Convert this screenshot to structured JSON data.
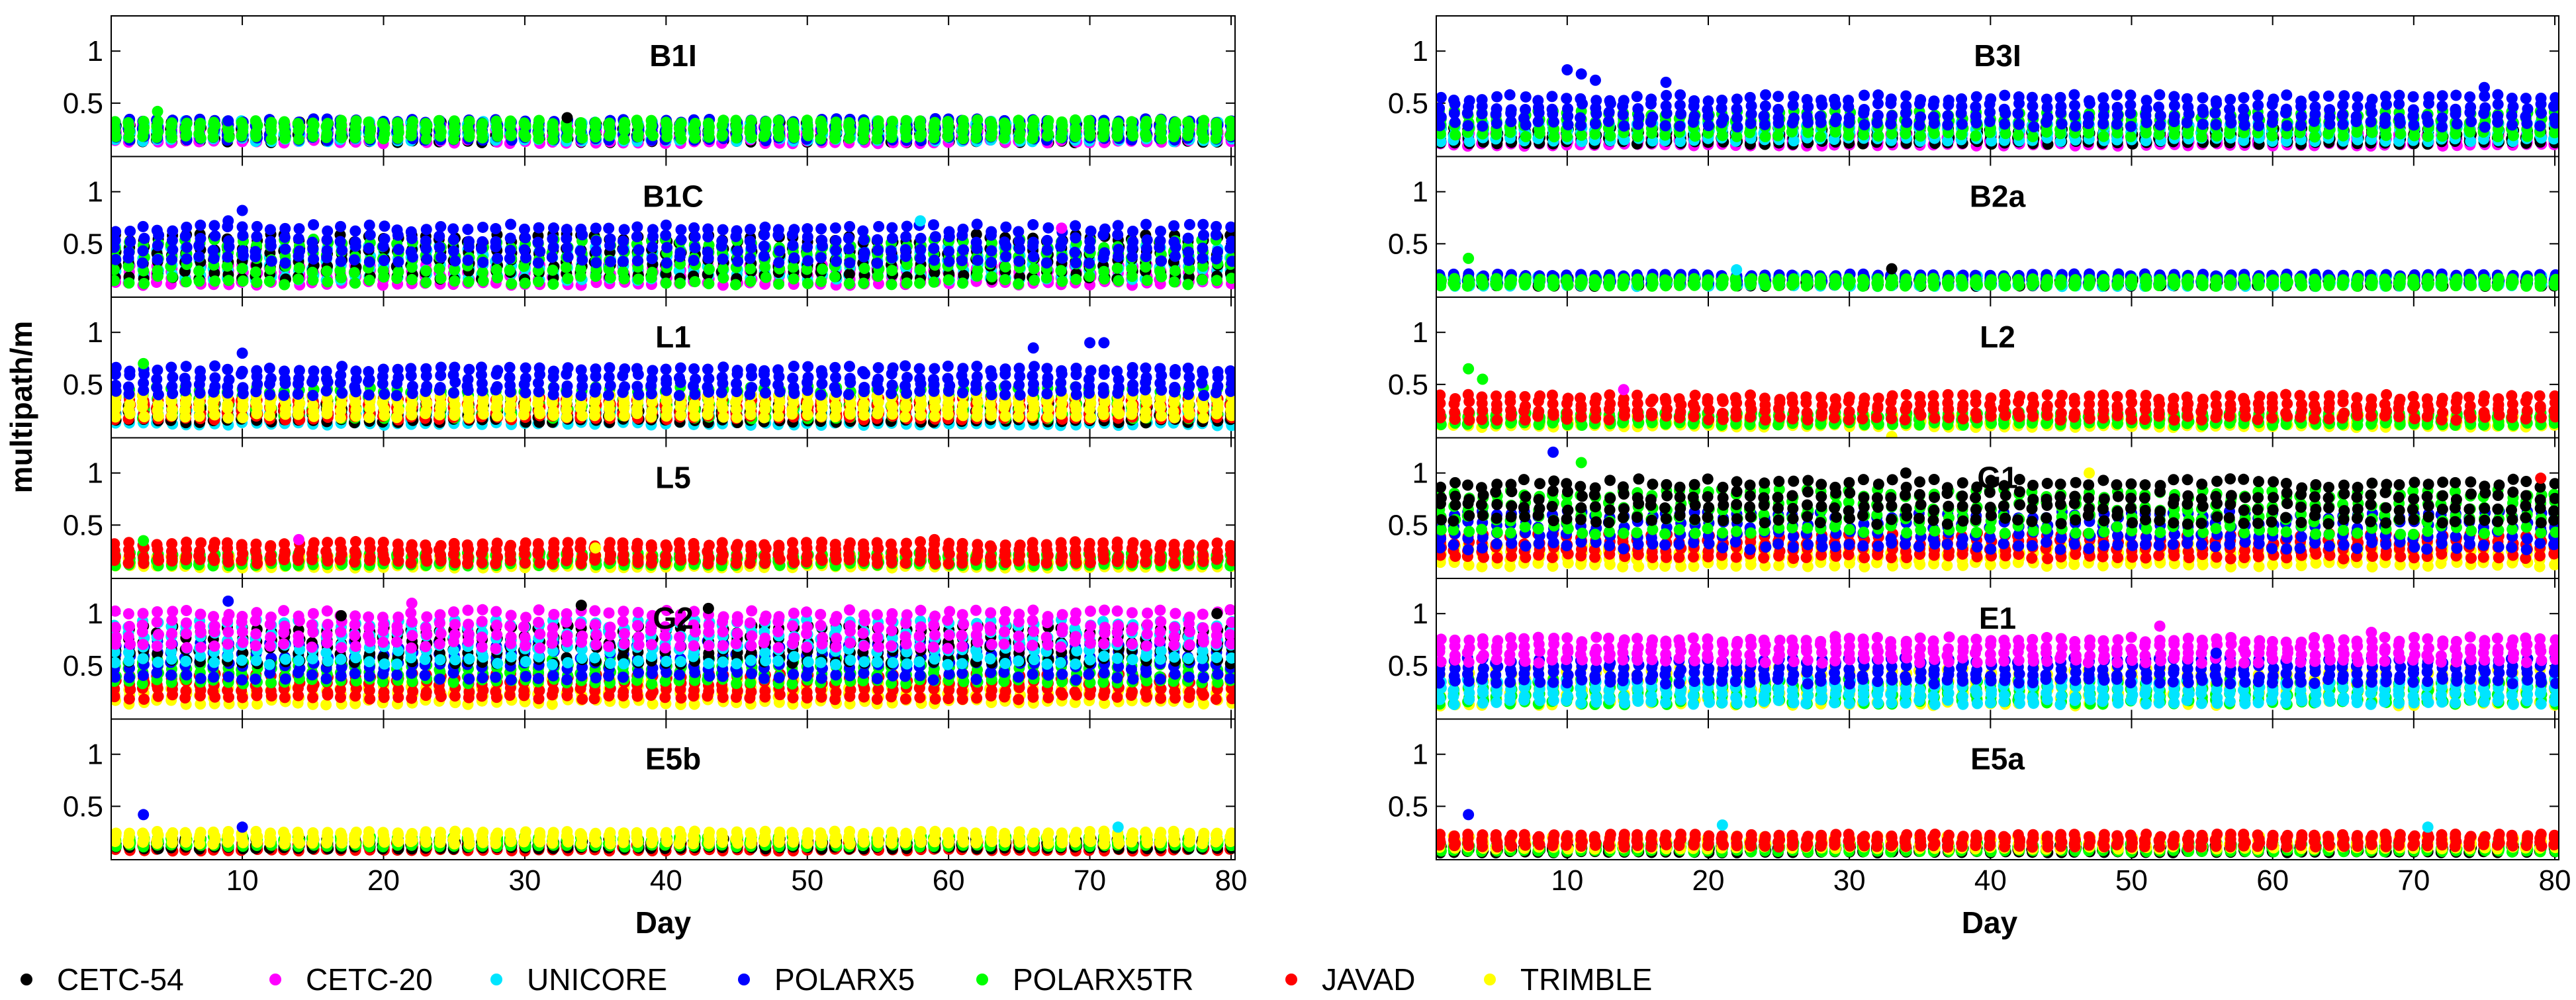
{
  "chart_data": {
    "type": "scatter",
    "ylabel": "multipath/m",
    "xlabel": "Day",
    "xlim": [
      1,
      80
    ],
    "ylim": [
      0,
      1.3
    ],
    "xticks": [
      10,
      20,
      30,
      40,
      50,
      60,
      70,
      80
    ],
    "yticks": [
      0.5,
      1
    ],
    "receivers": [
      {
        "name": "CETC-54",
        "color": "#000000"
      },
      {
        "name": "CETC-20",
        "color": "#ff00ff"
      },
      {
        "name": "UNICORE",
        "color": "#00e5ff"
      },
      {
        "name": "POLARX5",
        "color": "#0000ff"
      },
      {
        "name": "POLARX5TR",
        "color": "#00ff00"
      },
      {
        "name": "JAVAD",
        "color": "#ff0000"
      },
      {
        "name": "TRIMBLE",
        "color": "#ffff00"
      }
    ],
    "panels": [
      {
        "signal": "B1I",
        "column": "left",
        "row": 0,
        "levels": {
          "CETC-54": [
            0.14,
            0.3
          ],
          "CETC-20": [
            0.13,
            0.28
          ],
          "UNICORE": [
            0.15,
            0.31
          ],
          "POLARX5": [
            0.16,
            0.33
          ],
          "POLARX5TR": [
            0.17,
            0.32
          ]
        },
        "outliers": [
          {
            "r": "POLARX5TR",
            "x": 4,
            "y": 0.42
          },
          {
            "r": "POLARX5",
            "x": 9,
            "y": 0.33
          },
          {
            "r": "CETC-54",
            "x": 33,
            "y": 0.36
          }
        ]
      },
      {
        "signal": "B1C",
        "column": "left",
        "row": 1,
        "levels": {
          "CETC-20": [
            0.12,
            0.28
          ],
          "UNICORE": [
            0.18,
            0.45
          ],
          "CETC-54": [
            0.2,
            0.55
          ],
          "POLARX5TR": [
            0.15,
            0.5
          ],
          "POLARX5": [
            0.35,
            0.65
          ]
        },
        "outliers": [
          {
            "r": "POLARX5",
            "x": 10,
            "y": 0.82
          },
          {
            "r": "POLARX5",
            "x": 9,
            "y": 0.72
          },
          {
            "r": "UNICORE",
            "x": 58,
            "y": 0.72
          },
          {
            "r": "CETC-20",
            "x": 68,
            "y": 0.65
          }
        ]
      },
      {
        "signal": "L1",
        "column": "left",
        "row": 2,
        "levels": {
          "UNICORE": [
            0.12,
            0.25
          ],
          "CETC-54": [
            0.15,
            0.3
          ],
          "POLARX5TR": [
            0.2,
            0.45
          ],
          "JAVAD": [
            0.18,
            0.35
          ],
          "TRIMBLE": [
            0.2,
            0.38
          ],
          "POLARX5": [
            0.42,
            0.65
          ]
        },
        "outliers": [
          {
            "r": "POLARX5TR",
            "x": 3,
            "y": 0.7
          },
          {
            "r": "POLARX5",
            "x": 10,
            "y": 0.8
          },
          {
            "r": "POLARX5",
            "x": 66,
            "y": 0.85
          },
          {
            "r": "POLARX5",
            "x": 70,
            "y": 0.9
          },
          {
            "r": "POLARX5",
            "x": 71,
            "y": 0.9
          }
        ]
      },
      {
        "signal": "L5",
        "column": "left",
        "row": 3,
        "levels": {
          "TRIMBLE": [
            0.1,
            0.2
          ],
          "POLARX5TR": [
            0.12,
            0.22
          ],
          "JAVAD": [
            0.15,
            0.32
          ]
        },
        "outliers": [
          {
            "r": "POLARX5TR",
            "x": 3,
            "y": 0.35
          },
          {
            "r": "CETC-20",
            "x": 14,
            "y": 0.36
          },
          {
            "r": "JAVAD",
            "x": 59,
            "y": 0.36
          },
          {
            "r": "TRIMBLE",
            "x": 35,
            "y": 0.28
          }
        ]
      },
      {
        "signal": "G2",
        "column": "left",
        "row": 4,
        "levels": {
          "TRIMBLE": [
            0.15,
            0.35
          ],
          "JAVAD": [
            0.2,
            0.4
          ],
          "POLARX5TR": [
            0.35,
            0.55
          ],
          "POLARX5": [
            0.4,
            0.7
          ],
          "CETC-54": [
            0.55,
            0.85
          ],
          "UNICORE": [
            0.55,
            0.9
          ],
          "CETC-20": [
            0.7,
            1.0
          ]
        },
        "outliers": [
          {
            "r": "POLARX5",
            "x": 9,
            "y": 1.12
          },
          {
            "r": "CETC-20",
            "x": 22,
            "y": 1.1
          },
          {
            "r": "CETC-54",
            "x": 34,
            "y": 1.08
          },
          {
            "r": "CETC-54",
            "x": 43,
            "y": 1.05
          },
          {
            "r": "CETC-54",
            "x": 17,
            "y": 0.98
          },
          {
            "r": "CETC-54",
            "x": 79,
            "y": 1.0
          }
        ]
      },
      {
        "signal": "E5b",
        "column": "left",
        "row": 5,
        "levels": {
          "JAVAD": [
            0.08,
            0.15
          ],
          "CETC-54": [
            0.1,
            0.18
          ],
          "POLARX5TR": [
            0.12,
            0.2
          ],
          "TRIMBLE": [
            0.15,
            0.25
          ]
        },
        "outliers": [
          {
            "r": "POLARX5",
            "x": 3,
            "y": 0.42
          },
          {
            "r": "POLARX5",
            "x": 10,
            "y": 0.3
          },
          {
            "r": "UNICORE",
            "x": 72,
            "y": 0.3
          }
        ]
      },
      {
        "signal": "B3I",
        "column": "right",
        "row": 0,
        "levels": {
          "CETC-20": [
            0.1,
            0.2
          ],
          "CETC-54": [
            0.12,
            0.25
          ],
          "UNICORE": [
            0.15,
            0.3
          ],
          "POLARX5TR": [
            0.2,
            0.4
          ],
          "POLARX5": [
            0.3,
            0.55
          ]
        },
        "outliers": [
          {
            "r": "POLARX5",
            "x": 10,
            "y": 0.82
          },
          {
            "r": "POLARX5",
            "x": 11,
            "y": 0.78
          },
          {
            "r": "POLARX5",
            "x": 12,
            "y": 0.72
          },
          {
            "r": "POLARX5",
            "x": 17,
            "y": 0.7
          },
          {
            "r": "POLARX5",
            "x": 75,
            "y": 0.65
          }
        ]
      },
      {
        "signal": "B2a",
        "column": "right",
        "row": 1,
        "levels": {
          "CETC-54": [
            0.1,
            0.17
          ],
          "UNICORE": [
            0.1,
            0.18
          ],
          "POLARX5": [
            0.12,
            0.2
          ],
          "POLARX5TR": [
            0.1,
            0.16
          ]
        },
        "outliers": [
          {
            "r": "POLARX5TR",
            "x": 3,
            "y": 0.36
          },
          {
            "r": "UNICORE",
            "x": 22,
            "y": 0.25
          },
          {
            "r": "CETC-54",
            "x": 33,
            "y": 0.26
          }
        ]
      },
      {
        "signal": "L2",
        "column": "right",
        "row": 2,
        "levels": {
          "TRIMBLE": [
            0.1,
            0.2
          ],
          "POLARX5TR": [
            0.12,
            0.22
          ],
          "JAVAD": [
            0.18,
            0.38
          ]
        },
        "outliers": [
          {
            "r": "POLARX5TR",
            "x": 3,
            "y": 0.65
          },
          {
            "r": "POLARX5TR",
            "x": 4,
            "y": 0.55
          },
          {
            "r": "CETC-20",
            "x": 14,
            "y": 0.45
          },
          {
            "r": "TRIMBLE",
            "x": 33,
            "y": 0.0
          }
        ]
      },
      {
        "signal": "G1",
        "column": "right",
        "row": 3,
        "levels": {
          "TRIMBLE": [
            0.12,
            0.3
          ],
          "JAVAD": [
            0.2,
            0.4
          ],
          "POLARX5": [
            0.3,
            0.6
          ],
          "POLARX5TR": [
            0.45,
            0.8
          ],
          "CETC-54": [
            0.55,
            0.9
          ]
        },
        "outliers": [
          {
            "r": "POLARX5",
            "x": 9,
            "y": 1.2
          },
          {
            "r": "POLARX5TR",
            "x": 11,
            "y": 1.1
          },
          {
            "r": "CETC-54",
            "x": 34,
            "y": 1.0
          },
          {
            "r": "TRIMBLE",
            "x": 47,
            "y": 1.0
          },
          {
            "r": "JAVAD",
            "x": 79,
            "y": 0.95
          }
        ]
      },
      {
        "signal": "E1",
        "column": "right",
        "row": 4,
        "levels": {
          "TRIMBLE": [
            0.15,
            0.45
          ],
          "POLARX5TR": [
            0.15,
            0.35
          ],
          "UNICORE": [
            0.15,
            0.35
          ],
          "POLARX5": [
            0.35,
            0.55
          ],
          "CETC-20": [
            0.55,
            0.75
          ]
        },
        "outliers": [
          {
            "r": "CETC-20",
            "x": 52,
            "y": 0.88
          },
          {
            "r": "CETC-20",
            "x": 67,
            "y": 0.82
          },
          {
            "r": "CETC-20",
            "x": 29,
            "y": 0.78
          },
          {
            "r": "POLARX5",
            "x": 56,
            "y": 0.62
          }
        ]
      },
      {
        "signal": "E5a",
        "column": "right",
        "row": 5,
        "levels": {
          "CETC-54": [
            0.06,
            0.12
          ],
          "POLARX5TR": [
            0.07,
            0.14
          ],
          "TRIMBLE": [
            0.1,
            0.2
          ],
          "JAVAD": [
            0.12,
            0.22
          ]
        },
        "outliers": [
          {
            "r": "POLARX5",
            "x": 3,
            "y": 0.42
          },
          {
            "r": "UNICORE",
            "x": 21,
            "y": 0.32
          },
          {
            "r": "UNICORE",
            "x": 71,
            "y": 0.3
          }
        ]
      }
    ]
  }
}
